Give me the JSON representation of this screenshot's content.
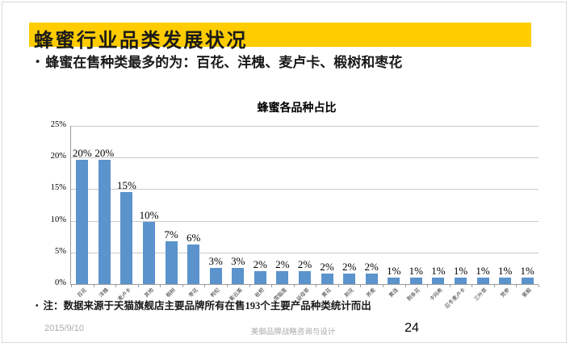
{
  "slide": {
    "title": "蜂蜜行业品类发展状况",
    "bullet": "蜂蜜在售种类最多的为：百花、洋槐、麦卢卡、椴树和枣花",
    "note": "注：数据来源于天猫旗舰店主要品牌所有在售193个主要产品种类统计而出",
    "footer": {
      "date": "2015/9/10",
      "brand": "美御品牌战略咨询与设计",
      "page_number": "24"
    },
    "accent_color": "#FFCC00"
  },
  "chart_data": {
    "type": "bar",
    "title": "蜂蜜各品种占比",
    "categories": [
      "百花",
      "洋槐",
      "麦卢卡",
      "其他",
      "椴树",
      "枣花",
      "枸杞",
      "紫云英",
      "枇杷",
      "雪脂莲",
      "益母草",
      "黄花",
      "荆花",
      "荞麦",
      "黄连",
      "荆条花",
      "卡玛希",
      "忍冬麦卢卡",
      "三叶草",
      "党参",
      "紫椴"
    ],
    "values": [
      20,
      20,
      15,
      10,
      7,
      6,
      3,
      3,
      2,
      2,
      2,
      2,
      2,
      2,
      1,
      1,
      1,
      1,
      1,
      1,
      1
    ],
    "value_labels": [
      "20%",
      "20%",
      "15%",
      "10%",
      "7%",
      "6%",
      "3%",
      "3%",
      "2%",
      "2%",
      "2%",
      "2%",
      "2%",
      "2%",
      "1%",
      "1%",
      "1%",
      "1%",
      "1%",
      "1%",
      "1%"
    ],
    "precise_values": [
      19.7,
      19.7,
      14.5,
      9.8,
      6.7,
      6.2,
      2.6,
      2.6,
      2.1,
      2.1,
      2.1,
      1.6,
      1.6,
      1.6,
      1.0,
      1.0,
      1.0,
      1.0,
      1.0,
      1.0,
      1.0
    ],
    "xlabel": "",
    "ylabel": "",
    "ylim": [
      0,
      25
    ],
    "ytick_step": 5,
    "ytick_labels": [
      "0%",
      "5%",
      "10%",
      "15%",
      "20%",
      "25%"
    ],
    "grid": true,
    "legend": false,
    "bar_color": "#5B93CC"
  }
}
